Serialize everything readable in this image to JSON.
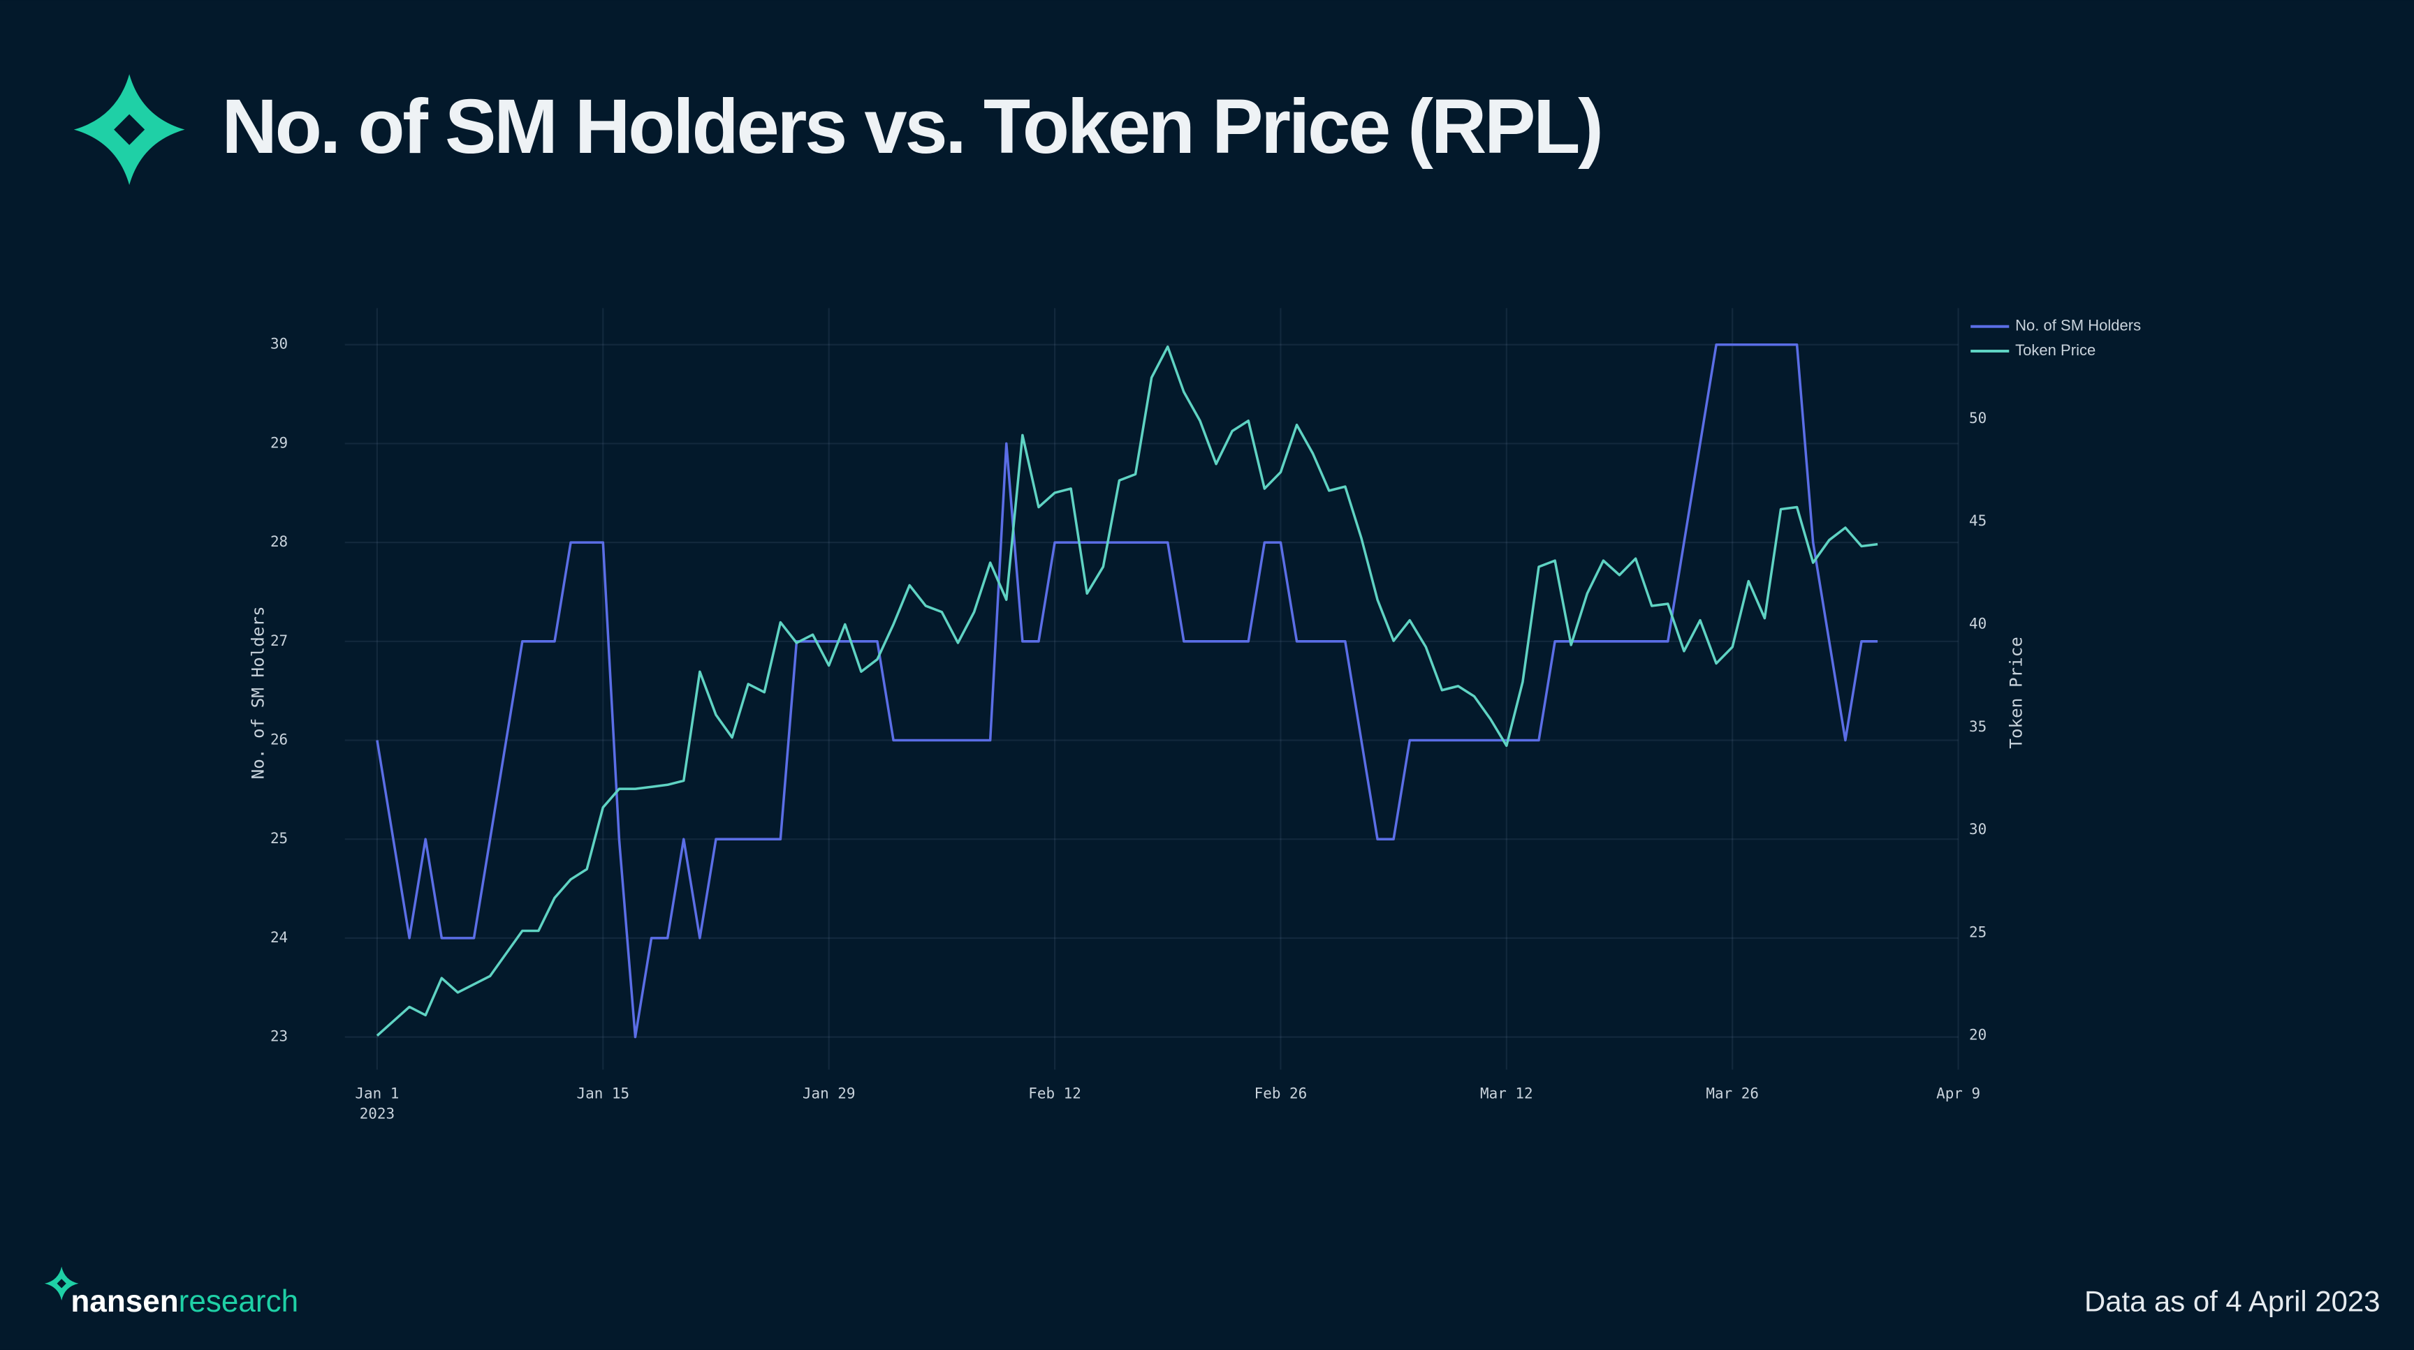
{
  "chart_data": {
    "type": "line",
    "title": "No. of SM Holders vs. Token Price (RPL)",
    "y_label": "No. of SM Holders",
    "y2_label": "Token Price",
    "footer_brand": "nansen",
    "footer_brand_suffix": "research",
    "footer_note": "Data as of 4 April 2023",
    "x": [
      "2023-01-01",
      "2023-01-02",
      "2023-01-03",
      "2023-01-04",
      "2023-01-05",
      "2023-01-06",
      "2023-01-07",
      "2023-01-08",
      "2023-01-09",
      "2023-01-10",
      "2023-01-11",
      "2023-01-12",
      "2023-01-13",
      "2023-01-14",
      "2023-01-15",
      "2023-01-16",
      "2023-01-17",
      "2023-01-18",
      "2023-01-19",
      "2023-01-20",
      "2023-01-21",
      "2023-01-22",
      "2023-01-23",
      "2023-01-24",
      "2023-01-25",
      "2023-01-26",
      "2023-01-27",
      "2023-01-28",
      "2023-01-29",
      "2023-01-30",
      "2023-01-31",
      "2023-02-01",
      "2023-02-02",
      "2023-02-03",
      "2023-02-04",
      "2023-02-05",
      "2023-02-06",
      "2023-02-07",
      "2023-02-08",
      "2023-02-09",
      "2023-02-10",
      "2023-02-11",
      "2023-02-12",
      "2023-02-13",
      "2023-02-14",
      "2023-02-15",
      "2023-02-16",
      "2023-02-17",
      "2023-02-18",
      "2023-02-19",
      "2023-02-20",
      "2023-02-21",
      "2023-02-22",
      "2023-02-23",
      "2023-02-24",
      "2023-02-25",
      "2023-02-26",
      "2023-02-27",
      "2023-02-28",
      "2023-03-01",
      "2023-03-02",
      "2023-03-03",
      "2023-03-04",
      "2023-03-05",
      "2023-03-06",
      "2023-03-07",
      "2023-03-08",
      "2023-03-09",
      "2023-03-10",
      "2023-03-11",
      "2023-03-12",
      "2023-03-13",
      "2023-03-14",
      "2023-03-15",
      "2023-03-16",
      "2023-03-17",
      "2023-03-18",
      "2023-03-19",
      "2023-03-20",
      "2023-03-21",
      "2023-03-22",
      "2023-03-23",
      "2023-03-24",
      "2023-03-25",
      "2023-03-26",
      "2023-03-27",
      "2023-03-28",
      "2023-03-29",
      "2023-03-30",
      "2023-03-31",
      "2023-04-01",
      "2023-04-02",
      "2023-04-03",
      "2023-04-04"
    ],
    "series": [
      {
        "name": "No. of SM Holders",
        "color": "#5b6ee6",
        "axis": "y",
        "values": [
          26,
          25,
          24,
          25,
          24,
          24,
          24,
          25,
          26,
          27,
          27,
          27,
          28,
          28,
          28,
          25,
          23,
          24,
          24,
          25,
          24,
          25,
          25,
          25,
          25,
          25,
          27,
          27,
          27,
          27,
          27,
          27,
          26,
          26,
          26,
          26,
          26,
          26,
          26,
          29,
          27,
          27,
          28,
          28,
          28,
          28,
          28,
          28,
          28,
          28,
          27,
          27,
          27,
          27,
          27,
          28,
          28,
          27,
          27,
          27,
          27,
          26,
          25,
          25,
          26,
          26,
          26,
          26,
          26,
          26,
          26,
          26,
          26,
          27,
          27,
          27,
          27,
          27,
          27,
          27,
          27,
          28,
          29,
          30,
          30,
          30,
          30,
          30,
          30,
          28,
          27,
          26,
          27,
          27
        ]
      },
      {
        "name": "Token Price",
        "color": "#5fd3c3",
        "axis": "y2",
        "values": [
          20.0,
          20.7,
          21.4,
          21.0,
          22.8,
          22.1,
          22.5,
          22.9,
          24.0,
          25.1,
          25.1,
          26.7,
          27.6,
          28.1,
          31.1,
          32.0,
          32.0,
          32.1,
          32.2,
          32.4,
          37.7,
          35.6,
          34.5,
          37.1,
          36.7,
          40.1,
          39.1,
          39.5,
          38.0,
          40.0,
          37.7,
          38.3,
          40.0,
          41.9,
          40.9,
          40.6,
          39.1,
          40.6,
          43.0,
          41.2,
          49.2,
          45.7,
          46.4,
          46.6,
          41.5,
          42.8,
          47.0,
          47.3,
          52.0,
          53.5,
          51.3,
          49.9,
          47.8,
          49.4,
          49.9,
          46.6,
          47.4,
          49.7,
          48.3,
          46.5,
          46.7,
          44.2,
          41.2,
          39.2,
          40.2,
          38.9,
          36.8,
          37.0,
          36.5,
          35.4,
          34.1,
          37.2,
          42.8,
          43.1,
          39.0,
          41.5,
          43.1,
          42.4,
          43.2,
          40.9,
          41.0,
          38.7,
          40.2,
          38.1,
          38.9,
          42.1,
          40.3,
          45.6,
          45.7,
          43.0,
          44.1,
          44.7,
          43.8,
          43.9
        ]
      }
    ],
    "xlim": [
      "2022-12-30",
      "2023-04-09"
    ],
    "xticks": [
      {
        "value": "2023-01-01",
        "label": "Jan 1"
      },
      {
        "value": "2023-01-15",
        "label": "Jan 15"
      },
      {
        "value": "2023-01-29",
        "label": "Jan 29"
      },
      {
        "value": "2023-02-12",
        "label": "Feb 12"
      },
      {
        "value": "2023-02-26",
        "label": "Feb 26"
      },
      {
        "value": "2023-03-12",
        "label": "Mar 12"
      },
      {
        "value": "2023-03-26",
        "label": "Mar 26"
      },
      {
        "value": "2023-04-09",
        "label": "Apr 9"
      }
    ],
    "x_year_label": "2023",
    "ylim": [
      22.67,
      30.37
    ],
    "yticks": [
      23,
      24,
      25,
      26,
      27,
      28,
      29,
      30
    ],
    "y2lim": [
      18.35,
      55.38
    ],
    "y2ticks": [
      20,
      25,
      30,
      35,
      40,
      45,
      50
    ],
    "grid": true,
    "legend": "top-right"
  }
}
